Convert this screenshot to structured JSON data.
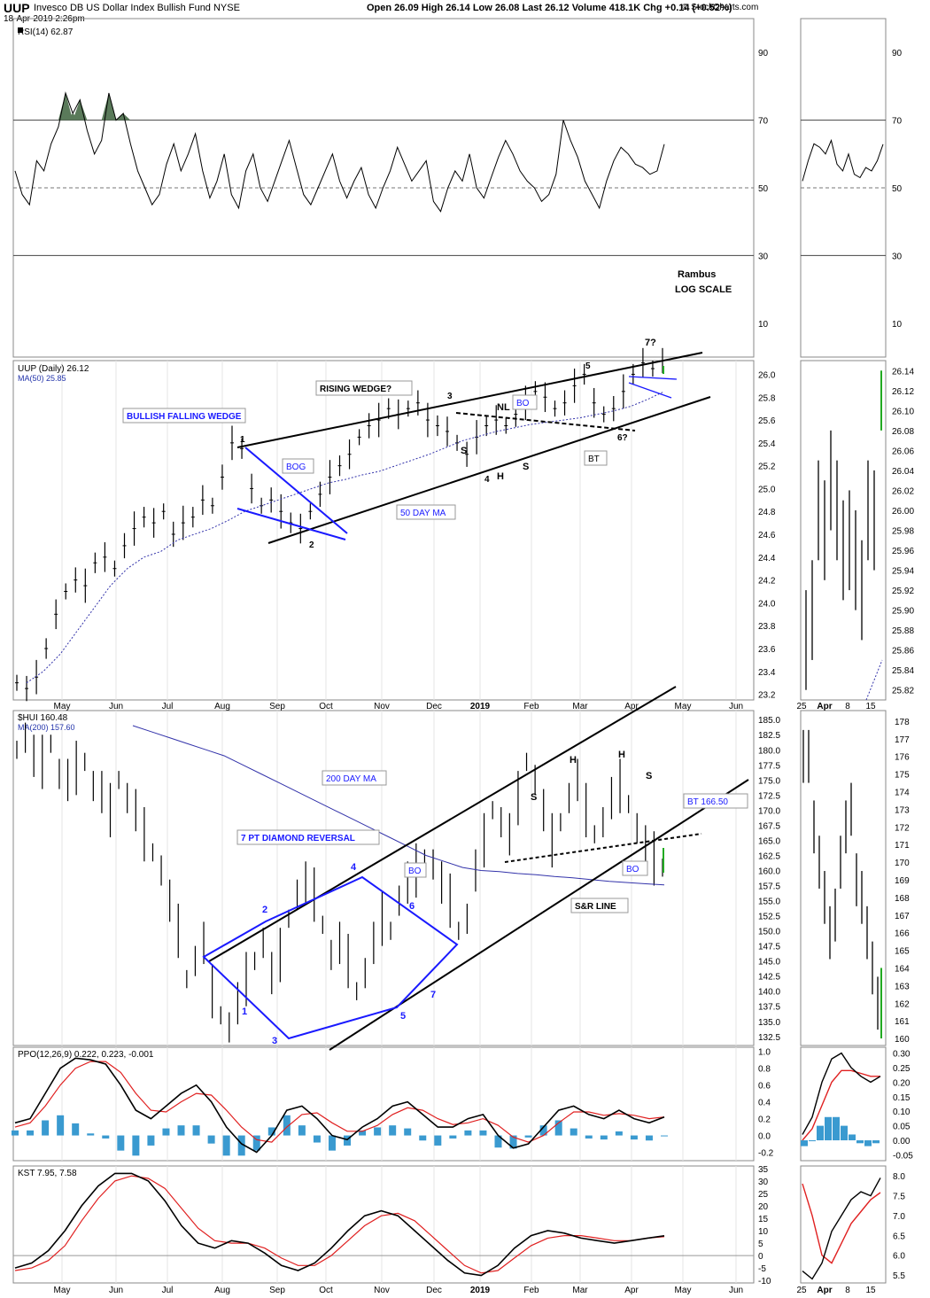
{
  "header": {
    "ticker": "UUP",
    "fund_name": "Invesco DB US Dollar Index Bullish Fund  NYSE",
    "date": "18-Apr-2019 2:26pm",
    "quote": "Open 26.09  High 26.14  Low 26.08  Last 26.12  Volume 418.1K  Chg +0.14 (+0.52%)",
    "copyright": "© StockCharts.com"
  },
  "chart_data": [
    {
      "type": "line",
      "panel": "rsi",
      "title": "RSI(14) 62.87",
      "ylim": [
        0,
        100
      ],
      "ticks": [
        "90",
        "70",
        "50",
        "30",
        "10"
      ],
      "reference_lines": [
        70,
        50,
        30
      ],
      "series": [
        {
          "values": [
            55,
            48,
            45,
            58,
            55,
            63,
            68,
            78,
            72,
            76,
            67,
            60,
            64,
            78,
            70,
            72,
            63,
            55,
            50,
            45,
            48,
            57,
            63,
            55,
            60,
            66,
            55,
            47,
            52,
            60,
            48,
            44,
            55,
            60,
            50,
            46,
            52,
            58,
            64,
            56,
            48,
            45,
            50,
            55,
            60,
            52,
            47,
            52,
            56,
            48,
            44,
            50,
            55,
            62,
            57,
            52,
            55,
            58,
            46,
            43,
            50,
            55,
            52,
            60,
            50,
            47,
            53,
            59,
            64,
            60,
            55,
            52,
            50,
            46,
            48,
            54,
            70,
            64,
            59,
            52,
            48,
            44,
            52,
            58,
            62,
            60,
            57,
            56,
            54,
            55,
            62.87
          ]
        }
      ],
      "annotations": [
        "Rambus",
        "LOG SCALE",
        "7?"
      ]
    },
    {
      "type": "line",
      "panel": "uup_price",
      "title": "UUP (Daily) 26.12",
      "series_label": "MA(50) 25.85",
      "ylim": [
        23.2,
        26.1
      ],
      "ticks": [
        "26.0",
        "25.8",
        "25.6",
        "25.4",
        "25.2",
        "25.0",
        "24.8",
        "24.6",
        "24.4",
        "24.2",
        "24.0",
        "23.8",
        "23.6",
        "23.4",
        "23.2"
      ],
      "x_ticks": [
        "May",
        "Jun",
        "Jul",
        "Aug",
        "Sep",
        "Oct",
        "Nov",
        "Dec",
        "2019",
        "Feb",
        "Mar",
        "Apr",
        "May",
        "Jun"
      ],
      "series": [
        {
          "name": "UUP",
          "values": [
            23.3,
            23.25,
            23.35,
            23.6,
            23.9,
            24.1,
            24.2,
            24.15,
            24.35,
            24.4,
            24.3,
            24.5,
            24.65,
            24.75,
            24.7,
            24.8,
            24.6,
            24.7,
            24.75,
            24.9,
            24.85,
            25.1,
            25.4,
            25.35,
            25.0,
            24.85,
            24.9,
            24.8,
            24.7,
            24.65,
            24.8,
            24.95,
            25.1,
            25.2,
            25.3,
            25.45,
            25.55,
            25.6,
            25.7,
            25.65,
            25.7,
            25.75,
            25.6,
            25.55,
            25.5,
            25.4,
            25.3,
            25.45,
            25.55,
            25.6,
            25.55,
            25.65,
            25.75,
            25.85,
            25.8,
            25.7,
            25.75,
            25.9,
            26.0,
            25.75,
            25.65,
            25.7,
            25.85,
            26.0,
            26.1,
            26.05,
            26.12
          ]
        },
        {
          "name": "MA(50)",
          "values": [
            23.3,
            23.4,
            23.55,
            23.75,
            23.95,
            24.15,
            24.3,
            24.4,
            24.45,
            24.55,
            24.6,
            24.65,
            24.72,
            24.8,
            24.85,
            24.9,
            24.95,
            25.0,
            25.05,
            25.08,
            25.12,
            25.15,
            25.2,
            25.25,
            25.3,
            25.36,
            25.42,
            25.46,
            25.5,
            25.53,
            25.56,
            25.58,
            25.6,
            25.62,
            25.65,
            25.68,
            25.72,
            25.78,
            25.85
          ]
        }
      ],
      "annotations": [
        "BULLISH FALLING WEDGE",
        "1",
        "2",
        "BOG",
        "RISING WEDGE?",
        "3",
        "4",
        "5",
        "6?",
        "NL",
        "BO",
        "S",
        "H",
        "S",
        "BT",
        "50 DAY MA"
      ]
    },
    {
      "type": "line",
      "panel": "uup_right_inset",
      "ylim": [
        25.82,
        26.14
      ],
      "ticks": [
        "26.14",
        "26.12",
        "26.10",
        "26.08",
        "26.06",
        "26.04",
        "26.02",
        "26.00",
        "25.98",
        "25.96",
        "25.94",
        "25.92",
        "25.90",
        "25.88",
        "25.86",
        "25.84",
        "25.82"
      ],
      "x_ticks": [
        "25",
        "Apr",
        "8",
        "15"
      ]
    },
    {
      "type": "line",
      "panel": "hui_price",
      "title": "$HUI 160.48",
      "series_label": "MA(200) 157.60",
      "ylim": [
        132.5,
        185.0
      ],
      "ticks": [
        "185.0",
        "182.5",
        "180.0",
        "177.5",
        "175.0",
        "172.5",
        "170.0",
        "167.5",
        "165.0",
        "162.5",
        "160.0",
        "157.5",
        "155.0",
        "152.5",
        "150.0",
        "147.5",
        "145.0",
        "142.5",
        "140.0",
        "137.5",
        "135.0",
        "132.5"
      ],
      "series": [
        {
          "name": "$HUI",
          "values": [
            180,
            182,
            179,
            178,
            181,
            176,
            175,
            177,
            178,
            174,
            173,
            170,
            175,
            172,
            170,
            166,
            163,
            160,
            155,
            150,
            142,
            145,
            148,
            140,
            136,
            134,
            138,
            142,
            145,
            148,
            143,
            146,
            152,
            156,
            158,
            156,
            151,
            146,
            148,
            145,
            140,
            143,
            148,
            152,
            150,
            155,
            158,
            160,
            162,
            161,
            158,
            155,
            150,
            152,
            160,
            165,
            170,
            168,
            166,
            172,
            178,
            175,
            170,
            165,
            168,
            172,
            175,
            170,
            166,
            168,
            172,
            174,
            171,
            167,
            164,
            162,
            160.48
          ]
        },
        {
          "name": "MA(200)",
          "values": [
            184,
            183,
            182,
            181,
            180,
            179,
            177.5,
            176,
            174.5,
            173,
            171.5,
            170,
            168.5,
            167,
            165.5,
            164,
            162.5,
            161.5,
            160.5,
            160,
            159.8,
            159.5,
            159.3,
            159,
            158.8,
            158.5,
            158.2,
            158,
            157.8,
            157.6
          ]
        }
      ],
      "annotations": [
        "200 DAY MA",
        "7 PT DIAMOND REVERSAL",
        "BO",
        "1",
        "2",
        "3",
        "4",
        "5",
        "6",
        "7",
        "S",
        "H",
        "H",
        "S",
        "S&R LINE",
        "BO",
        "BT 166.50"
      ]
    },
    {
      "type": "line",
      "panel": "hui_right_inset",
      "ylim": [
        160,
        178
      ],
      "ticks": [
        "178",
        "177",
        "176",
        "175",
        "174",
        "173",
        "172",
        "171",
        "170",
        "169",
        "168",
        "167",
        "166",
        "165",
        "164",
        "163",
        "162",
        "161",
        "160"
      ]
    },
    {
      "type": "area",
      "panel": "ppo",
      "title": "PPO(12,26,9) 0.222, 0.223, -0.001",
      "ylim": [
        -0.25,
        1.0
      ],
      "ticks": [
        "1.0",
        "0.8",
        "0.6",
        "0.4",
        "0.2",
        "0.0",
        "-0.2"
      ],
      "right_ticks": [
        "0.30",
        "0.25",
        "0.20",
        "0.15",
        "0.10",
        "0.05",
        "0.00",
        "-0.05"
      ],
      "series": [
        {
          "name": "PPO",
          "values": [
            0.15,
            0.2,
            0.5,
            0.8,
            0.92,
            0.9,
            0.85,
            0.6,
            0.3,
            0.2,
            0.35,
            0.5,
            0.6,
            0.4,
            0.1,
            -0.1,
            -0.2,
            0.0,
            0.3,
            0.35,
            0.2,
            0.0,
            -0.05,
            0.1,
            0.2,
            0.35,
            0.4,
            0.25,
            0.1,
            0.1,
            0.2,
            0.25,
            0.0,
            -0.15,
            -0.1,
            0.1,
            0.3,
            0.35,
            0.25,
            0.2,
            0.3,
            0.2,
            0.15,
            0.22
          ]
        },
        {
          "name": "Signal",
          "values": [
            0.1,
            0.15,
            0.35,
            0.6,
            0.8,
            0.88,
            0.88,
            0.75,
            0.5,
            0.3,
            0.28,
            0.4,
            0.5,
            0.48,
            0.3,
            0.1,
            -0.05,
            -0.08,
            0.1,
            0.25,
            0.27,
            0.15,
            0.05,
            0.05,
            0.12,
            0.25,
            0.33,
            0.3,
            0.2,
            0.13,
            0.15,
            0.2,
            0.12,
            -0.02,
            -0.08,
            0.0,
            0.15,
            0.28,
            0.28,
            0.24,
            0.26,
            0.24,
            0.2,
            0.22
          ]
        }
      ]
    },
    {
      "type": "line",
      "panel": "kst",
      "title": "KST 7.95, 7.58",
      "ylim": [
        -10,
        35
      ],
      "ticks": [
        "35",
        "30",
        "25",
        "20",
        "15",
        "10",
        "5",
        "0",
        "-5",
        "-10"
      ],
      "right_ticks": [
        "8.0",
        "7.5",
        "7.0",
        "6.5",
        "6.0",
        "5.5"
      ],
      "x_ticks": [
        "May",
        "Jun",
        "Jul",
        "Aug",
        "Sep",
        "Oct",
        "Nov",
        "Dec",
        "2019",
        "Feb",
        "Mar",
        "Apr",
        "May",
        "Jun"
      ],
      "series": [
        {
          "name": "KST",
          "values": [
            -5,
            -3,
            2,
            10,
            20,
            28,
            33,
            33,
            30,
            22,
            12,
            5,
            3,
            6,
            5,
            1,
            -4,
            -6,
            -3,
            3,
            10,
            16,
            18,
            16,
            10,
            4,
            -2,
            -7,
            -8,
            -4,
            3,
            8,
            10,
            9,
            7,
            6,
            5,
            6,
            7,
            7.95
          ]
        },
        {
          "name": "Signal",
          "values": [
            -6,
            -5,
            -2,
            4,
            14,
            23,
            30,
            32,
            31,
            27,
            19,
            11,
            6,
            5,
            5,
            3,
            -1,
            -4,
            -4,
            0,
            6,
            12,
            16,
            17,
            14,
            8,
            2,
            -4,
            -7,
            -6,
            -1,
            4,
            7,
            8,
            8,
            7,
            6,
            6,
            7,
            7.58
          ]
        }
      ]
    }
  ]
}
